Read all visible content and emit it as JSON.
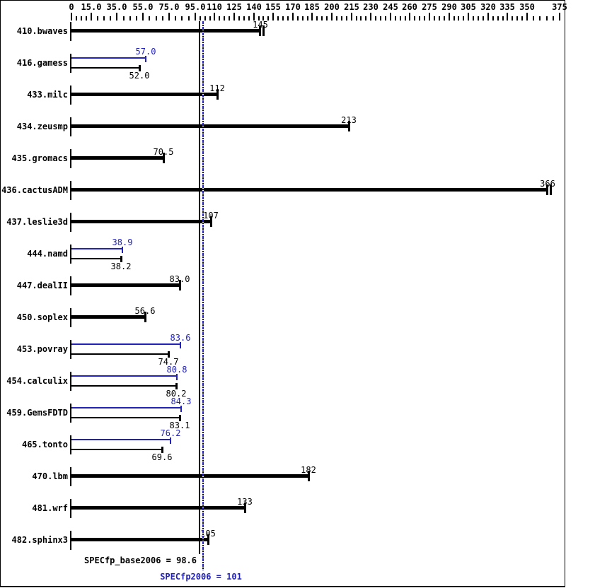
{
  "chart_data": {
    "type": "bar",
    "orientation": "horizontal",
    "axis": {
      "min": 0,
      "max": 375,
      "major_ticks": [
        0,
        15,
        35,
        55,
        75,
        95,
        110,
        125,
        140,
        155,
        170,
        185,
        200,
        215,
        230,
        245,
        260,
        275,
        290,
        305,
        320,
        335,
        350,
        375
      ],
      "major_tick_labels": [
        "0",
        "15.0",
        "35.0",
        "55.0",
        "75.0",
        "95.0",
        "110",
        "125",
        "140",
        "155",
        "170",
        "185",
        "200",
        "215",
        "230",
        "245",
        "260",
        "275",
        "290",
        "305",
        "320",
        "335",
        "350",
        "375"
      ],
      "minor_ticks_between": 3,
      "minor_ticks_last_segment": 4,
      "grid": false
    },
    "series_colors": {
      "base": "#000000",
      "peak": "#2222bb"
    },
    "legend_position": "none",
    "benchmarks": [
      {
        "name": "410.bwaves",
        "style": "single",
        "base": 145,
        "base_label": "145",
        "end_tick": "double"
      },
      {
        "name": "416.gamess",
        "style": "dual",
        "peak": 57.0,
        "peak_label": "57.0",
        "base": 52.0,
        "base_label": "52.0"
      },
      {
        "name": "433.milc",
        "style": "single",
        "base": 112,
        "base_label": "112",
        "end_tick": "single"
      },
      {
        "name": "434.zeusmp",
        "style": "single",
        "base": 213,
        "base_label": "213",
        "end_tick": "single"
      },
      {
        "name": "435.gromacs",
        "style": "single",
        "base": 70.5,
        "base_label": "70.5",
        "end_tick": "single"
      },
      {
        "name": "436.cactusADM",
        "style": "single",
        "base": 366,
        "base_label": "366",
        "end_tick": "double"
      },
      {
        "name": "437.leslie3d",
        "style": "single",
        "base": 107,
        "base_label": "107",
        "end_tick": "single"
      },
      {
        "name": "444.namd",
        "style": "dual",
        "peak": 38.9,
        "peak_label": "38.9",
        "base": 38.2,
        "base_label": "38.2"
      },
      {
        "name": "447.dealII",
        "style": "single",
        "base": 83.0,
        "base_label": "83.0",
        "end_tick": "single"
      },
      {
        "name": "450.soplex",
        "style": "single",
        "base": 56.6,
        "base_label": "56.6",
        "end_tick": "single"
      },
      {
        "name": "453.povray",
        "style": "dual",
        "peak": 83.6,
        "peak_label": "83.6",
        "base": 74.7,
        "base_label": "74.7"
      },
      {
        "name": "454.calculix",
        "style": "dual",
        "peak": 80.8,
        "peak_label": "80.8",
        "base": 80.2,
        "base_label": "80.2"
      },
      {
        "name": "459.GemsFDTD",
        "style": "dual",
        "peak": 84.3,
        "peak_label": "84.3",
        "base": 83.1,
        "base_label": "83.1"
      },
      {
        "name": "465.tonto",
        "style": "dual",
        "peak": 76.2,
        "peak_label": "76.2",
        "base": 69.6,
        "base_label": "69.6"
      },
      {
        "name": "470.lbm",
        "style": "single",
        "base": 182,
        "base_label": "182",
        "end_tick": "single"
      },
      {
        "name": "481.wrf",
        "style": "single",
        "base": 133,
        "base_label": "133",
        "end_tick": "single"
      },
      {
        "name": "482.sphinx3",
        "style": "single",
        "base": 105,
        "base_label": "105",
        "end_tick": "single"
      }
    ],
    "reference_lines": [
      {
        "id": "base",
        "value": 98.6,
        "color": "#000000",
        "line_style": "solid"
      },
      {
        "id": "peak",
        "value": 101,
        "color": "#2222bb",
        "line_style": "dotted"
      }
    ]
  },
  "summary": {
    "base_label": "SPECfp_base2006 = 98.6",
    "peak_label": "SPECfp2006 = 101"
  }
}
